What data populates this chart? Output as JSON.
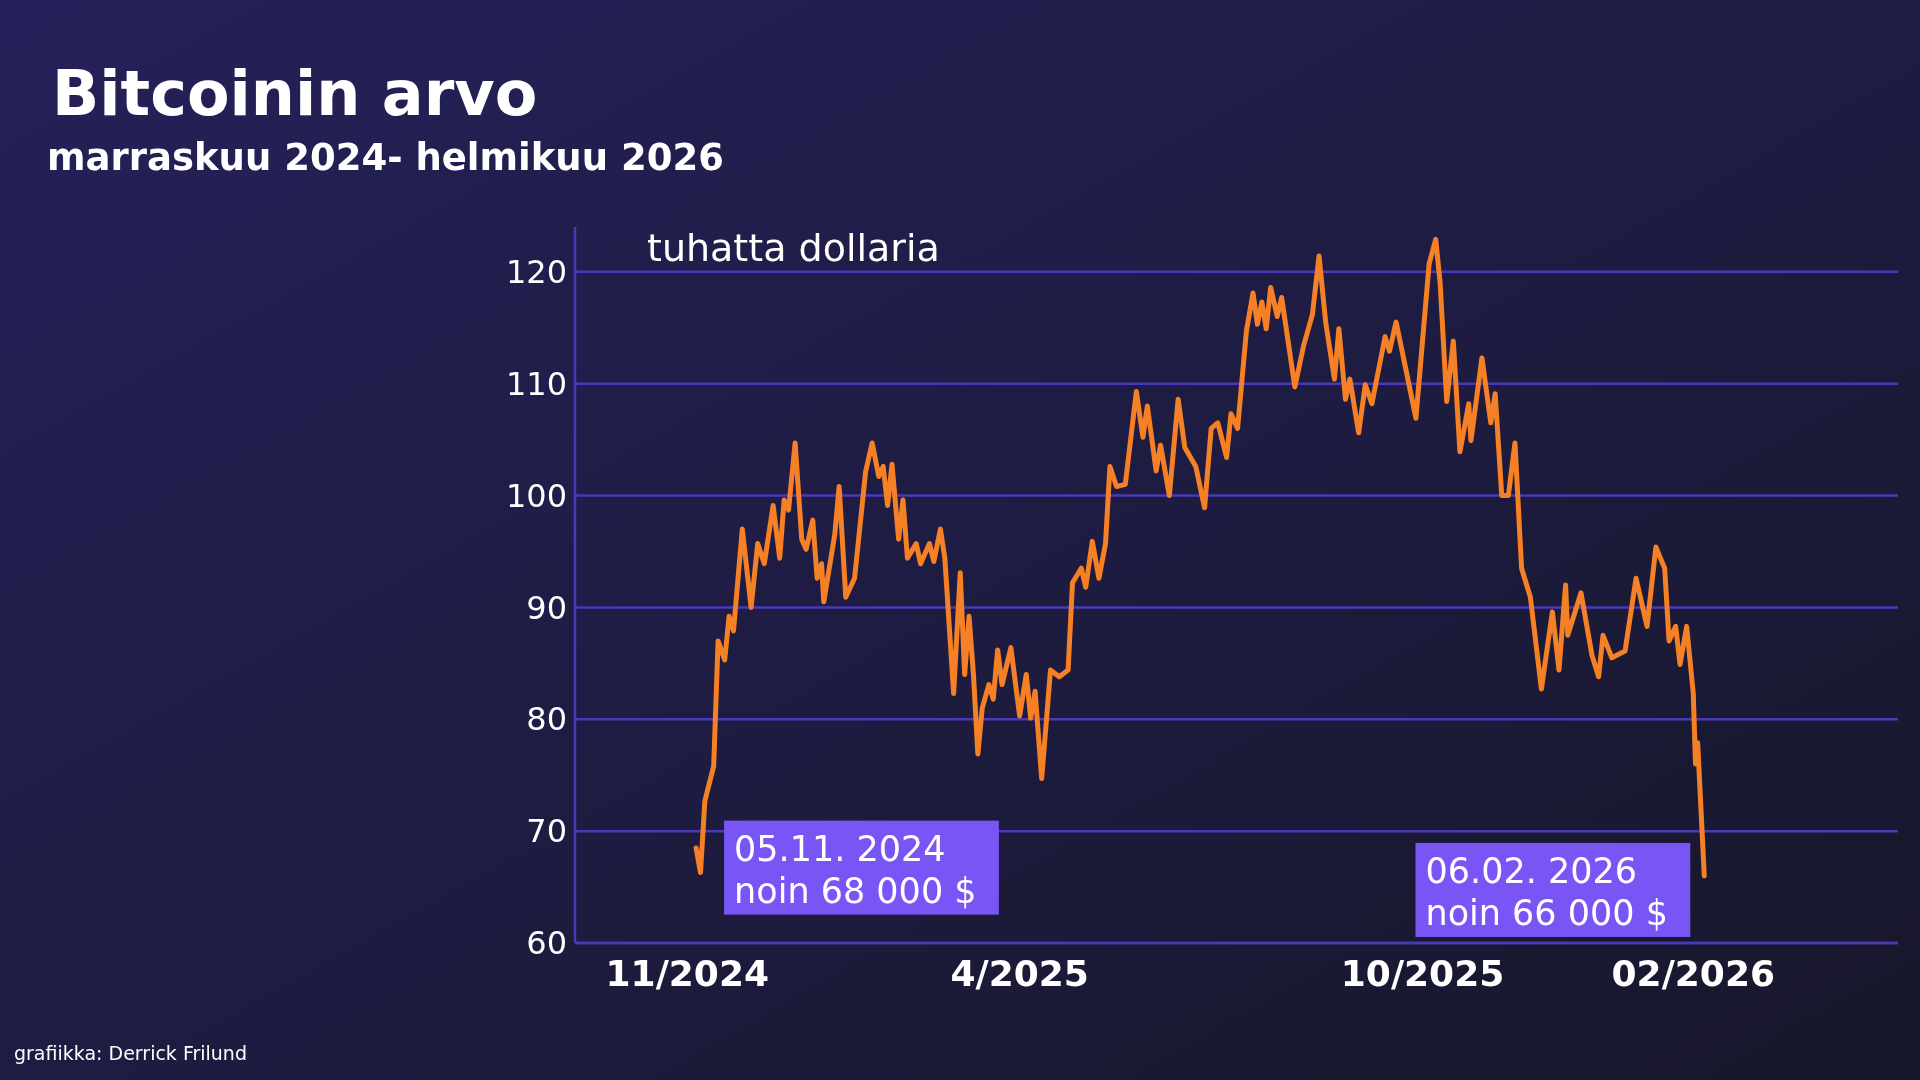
{
  "chart_data": {
    "type": "line",
    "title": "Bitcoinin arvo",
    "subtitle": "marraskuu 2024- helmikuu 2026",
    "ylabel": "tuhatta dollaria",
    "x": [
      "2024-11-05",
      "2024-11-07",
      "2024-11-09",
      "2024-11-13",
      "2024-11-15",
      "2024-11-18",
      "2024-11-20",
      "2024-11-22",
      "2024-11-26",
      "2024-11-30",
      "2024-12-03",
      "2024-12-06",
      "2024-12-10",
      "2024-12-13",
      "2024-12-15",
      "2024-12-17",
      "2024-12-20",
      "2024-12-23",
      "2024-12-25",
      "2024-12-28",
      "2024-12-30",
      "2025-01-01",
      "2025-01-02",
      "2025-01-07",
      "2025-01-09",
      "2025-01-12",
      "2025-01-16",
      "2025-01-21",
      "2025-01-24",
      "2025-01-27",
      "2025-01-29",
      "2025-01-31",
      "2025-02-02",
      "2025-02-05",
      "2025-02-07",
      "2025-02-09",
      "2025-02-13",
      "2025-02-15",
      "2025-02-19",
      "2025-02-21",
      "2025-02-24",
      "2025-02-26",
      "2025-03-02",
      "2025-03-05",
      "2025-03-07",
      "2025-03-09",
      "2025-03-11",
      "2025-03-13",
      "2025-03-15",
      "2025-03-18",
      "2025-03-20",
      "2025-03-22",
      "2025-03-24",
      "2025-03-28",
      "2025-04-01",
      "2025-04-04",
      "2025-04-06",
      "2025-04-08",
      "2025-04-11",
      "2025-04-15",
      "2025-04-19",
      "2025-04-23",
      "2025-04-25",
      "2025-04-29",
      "2025-05-01",
      "2025-05-04",
      "2025-05-07",
      "2025-05-10",
      "2025-05-12",
      "2025-05-15",
      "2025-05-19",
      "2025-05-24",
      "2025-05-27",
      "2025-05-29",
      "2025-06-02",
      "2025-06-04",
      "2025-06-08",
      "2025-06-12",
      "2025-06-15",
      "2025-06-20",
      "2025-06-24",
      "2025-06-27",
      "2025-06-30",
      "2025-07-04",
      "2025-07-06",
      "2025-07-09",
      "2025-07-13",
      "2025-07-16",
      "2025-07-18",
      "2025-07-20",
      "2025-07-22",
      "2025-07-24",
      "2025-07-27",
      "2025-07-29",
      "2025-08-04",
      "2025-08-08",
      "2025-08-12",
      "2025-08-15",
      "2025-08-18",
      "2025-08-22",
      "2025-08-24",
      "2025-08-27",
      "2025-08-29",
      "2025-09-02",
      "2025-09-05",
      "2025-09-08",
      "2025-09-14",
      "2025-09-16",
      "2025-09-19",
      "2025-09-28",
      "2025-10-04",
      "2025-10-07",
      "2025-10-09",
      "2025-10-12",
      "2025-10-15",
      "2025-10-18",
      "2025-10-22",
      "2025-10-23",
      "2025-10-28",
      "2025-11-01",
      "2025-11-03",
      "2025-11-06",
      "2025-11-09",
      "2025-11-12",
      "2025-11-15",
      "2025-11-19",
      "2025-11-24",
      "2025-11-29",
      "2025-12-02",
      "2025-12-05",
      "2025-12-06",
      "2025-12-12",
      "2025-12-17",
      "2025-12-20",
      "2025-12-22",
      "2025-12-26",
      "2026-01-01",
      "2026-01-06",
      "2026-01-11",
      "2026-01-15",
      "2026-01-19",
      "2026-01-21",
      "2026-01-24",
      "2026-01-26",
      "2026-01-29",
      "2026-02-01",
      "2026-02-02",
      "2026-02-03",
      "2026-02-06"
    ],
    "series": [
      {
        "color": "#f58025",
        "values": [
          68.5,
          66.3,
          72.7,
          75.8,
          87.0,
          85.3,
          89.2,
          87.9,
          97.0,
          90.0,
          95.7,
          93.9,
          99.1,
          94.4,
          99.6,
          98.7,
          104.7,
          96.1,
          95.2,
          97.8,
          92.6,
          93.9,
          90.5,
          96.5,
          100.8,
          90.9,
          92.6,
          102.1,
          104.7,
          101.7,
          102.6,
          99.1,
          102.8,
          96.1,
          99.6,
          94.4,
          95.7,
          93.9,
          95.7,
          94.1,
          97.0,
          94.4,
          82.3,
          93.1,
          84.0,
          89.2,
          84.0,
          76.9,
          81.0,
          83.1,
          81.8,
          86.2,
          83.1,
          86.4,
          80.3,
          84.0,
          80.1,
          82.5,
          74.7,
          84.4,
          83.8,
          84.4,
          92.2,
          93.5,
          91.8,
          95.9,
          92.6,
          95.7,
          102.6,
          100.8,
          101.0,
          109.3,
          105.2,
          108.0,
          102.2,
          104.5,
          100.0,
          108.6,
          104.3,
          102.6,
          98.9,
          106.0,
          106.5,
          103.4,
          107.3,
          106.0,
          114.7,
          118.1,
          115.3,
          117.3,
          114.9,
          118.6,
          116.0,
          117.7,
          109.7,
          113.4,
          116.2,
          121.4,
          115.5,
          110.4,
          114.9,
          108.6,
          110.4,
          105.6,
          109.9,
          108.2,
          114.2,
          112.9,
          115.5,
          106.9,
          120.7,
          122.9,
          119.0,
          108.4,
          113.8,
          103.9,
          108.2,
          104.9,
          112.3,
          106.5,
          109.1,
          100.0,
          100.0,
          104.7,
          93.5,
          90.9,
          82.7,
          89.6,
          84.4,
          92.0,
          87.5,
          91.3,
          85.7,
          83.8,
          87.5,
          85.5,
          86.1,
          92.6,
          88.3,
          95.4,
          93.5,
          87.0,
          88.3,
          84.9,
          88.3,
          82.3,
          76.0,
          77.9,
          66.0
        ]
      }
    ],
    "xlim": [
      "2024-09-11",
      "2026-05-05"
    ],
    "xticks": [
      {
        "value": "2024-11-01",
        "label": "11/2024"
      },
      {
        "value": "2025-04-01",
        "label": "4/2025"
      },
      {
        "value": "2025-10-01",
        "label": "10/2025"
      },
      {
        "value": "2026-02-01",
        "label": "02/2026"
      }
    ],
    "ylim": [
      60,
      124
    ],
    "yticks": [
      60,
      70,
      80,
      90,
      100,
      110,
      120
    ],
    "grid": "y",
    "line_style": "solid",
    "annotations": [
      {
        "text": "05.11. 2024\nnoin 68 000 $",
        "x": "2024-11-05",
        "y": 68
      },
      {
        "text": "06.02. 2026\nnoin 66 000 $",
        "x": "2026-02-06",
        "y": 66
      },
      "grafiikka: Derrick Frilund"
    ]
  }
}
